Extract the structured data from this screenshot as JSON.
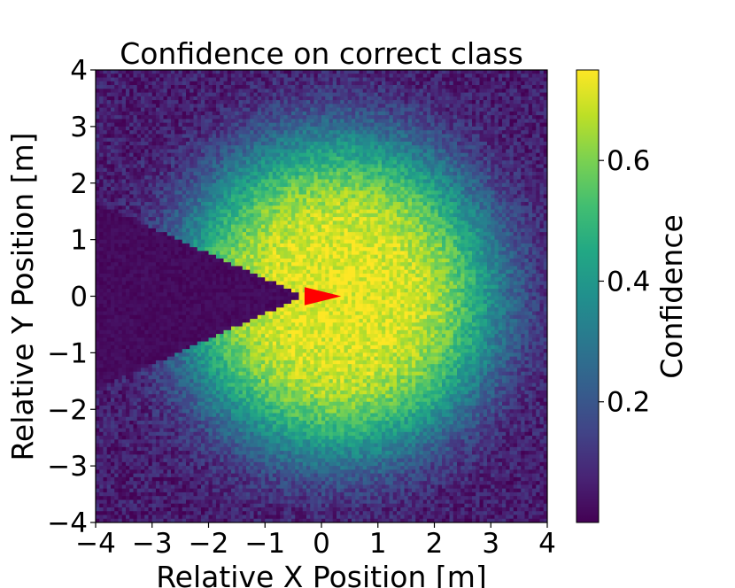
{
  "chart_data": {
    "type": "heatmap",
    "title": "Confidence on correct class",
    "xlabel": "Relative X Position [m]",
    "ylabel": "Relative Y Position [m]",
    "xlim": [
      -4,
      4
    ],
    "ylim": [
      -4,
      4
    ],
    "xticks": [
      -4,
      -3,
      -2,
      -1,
      0,
      1,
      2,
      3,
      4
    ],
    "yticks": [
      -4,
      -3,
      -2,
      -1,
      0,
      1,
      2,
      3,
      4
    ],
    "grid": false,
    "colormap": "viridis",
    "colorbar": {
      "label": "Confidence",
      "range": [
        0.0,
        0.75
      ],
      "ticks": [
        0.2,
        0.4,
        0.6
      ]
    },
    "grid_resolution": 120,
    "distribution": {
      "peak_center": [
        0.3,
        0.0
      ],
      "peak_confidence": 0.72,
      "sigma_m": 2.0,
      "background_confidence": 0.06,
      "noise_amplitude": 0.07
    },
    "blind_wedge": {
      "apex": [
        -0.3,
        0.0
      ],
      "left_edge_y_halfwidth": 1.65,
      "confidence": 0.02
    },
    "marker": {
      "shape": "triangle-right",
      "color": "#ff0000",
      "tip": [
        0.35,
        0.0
      ],
      "base_x": -0.3,
      "base_halfheight": 0.16
    }
  }
}
